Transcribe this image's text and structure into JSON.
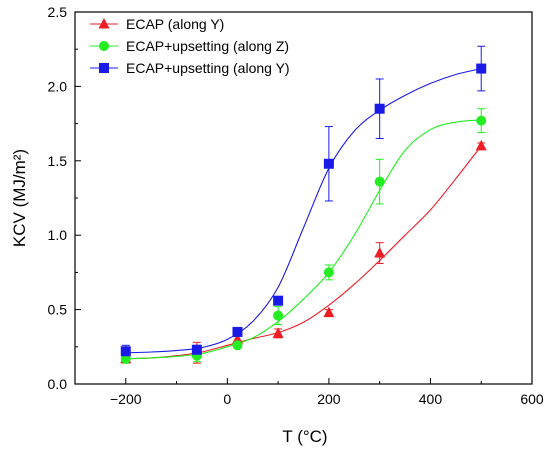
{
  "chart_data": {
    "type": "line",
    "xlabel": "T (°C)",
    "ylabel": "KCV (MJ/m²)",
    "xlim": [
      -300,
      600
    ],
    "ylim": [
      0.0,
      2.5
    ],
    "x_ticks": [
      "-200",
      "0",
      "200",
      "400",
      "600"
    ],
    "y_ticks": [
      "0.0",
      "0.5",
      "1.0",
      "1.5",
      "2.0",
      "2.5"
    ],
    "grid": false,
    "legend_position": "top-left",
    "series": [
      {
        "name": "ECAP (along Y)",
        "color": "#ee1c25",
        "marker": "triangle",
        "points": [
          {
            "x": -200,
            "y": 0.17,
            "err": 0.02
          },
          {
            "x": -60,
            "y": 0.21,
            "err": 0.07
          },
          {
            "x": 20,
            "y": 0.3,
            "err": 0.02
          },
          {
            "x": 100,
            "y": 0.34,
            "err": 0.03
          },
          {
            "x": 200,
            "y": 0.48,
            "err": 0.02
          },
          {
            "x": 300,
            "y": 0.88,
            "err": 0.07
          },
          {
            "x": 500,
            "y": 1.6,
            "err": 0.02
          }
        ],
        "curve": [
          [
            -200,
            0.17
          ],
          [
            -150,
            0.175
          ],
          [
            -100,
            0.19
          ],
          [
            -50,
            0.215
          ],
          [
            0,
            0.26
          ],
          [
            50,
            0.305
          ],
          [
            100,
            0.345
          ],
          [
            150,
            0.415
          ],
          [
            200,
            0.53
          ],
          [
            250,
            0.67
          ],
          [
            300,
            0.83
          ],
          [
            350,
            1.0
          ],
          [
            400,
            1.17
          ],
          [
            450,
            1.38
          ],
          [
            500,
            1.6
          ]
        ]
      },
      {
        "name": "ECAP+upsetting (along Z)",
        "color": "#22ee22",
        "marker": "circle",
        "points": [
          {
            "x": -200,
            "y": 0.17,
            "err": 0.03
          },
          {
            "x": -60,
            "y": 0.19,
            "err": 0.04
          },
          {
            "x": 20,
            "y": 0.26,
            "err": 0.02
          },
          {
            "x": 100,
            "y": 0.46,
            "err": 0.06
          },
          {
            "x": 200,
            "y": 0.75,
            "err": 0.05
          },
          {
            "x": 300,
            "y": 1.36,
            "err": 0.15
          },
          {
            "x": 500,
            "y": 1.77,
            "err": 0.08
          }
        ],
        "curve": [
          [
            -200,
            0.17
          ],
          [
            -150,
            0.175
          ],
          [
            -100,
            0.185
          ],
          [
            -50,
            0.205
          ],
          [
            0,
            0.25
          ],
          [
            50,
            0.31
          ],
          [
            100,
            0.42
          ],
          [
            150,
            0.57
          ],
          [
            200,
            0.75
          ],
          [
            250,
            1.0
          ],
          [
            300,
            1.3
          ],
          [
            350,
            1.57
          ],
          [
            400,
            1.71
          ],
          [
            450,
            1.76
          ],
          [
            500,
            1.775
          ]
        ]
      },
      {
        "name": "ECAP+upsetting (along Y)",
        "color": "#1a1ae6",
        "marker": "square",
        "points": [
          {
            "x": -200,
            "y": 0.22,
            "err": 0.04
          },
          {
            "x": -60,
            "y": 0.23,
            "err": 0.03
          },
          {
            "x": 20,
            "y": 0.35,
            "err": 0.02
          },
          {
            "x": 100,
            "y": 0.56,
            "err": 0.02
          },
          {
            "x": 200,
            "y": 1.48,
            "err": 0.25
          },
          {
            "x": 300,
            "y": 1.85,
            "err": 0.2
          },
          {
            "x": 500,
            "y": 2.12,
            "err": 0.15
          }
        ],
        "curve": [
          [
            -200,
            0.21
          ],
          [
            -150,
            0.215
          ],
          [
            -100,
            0.225
          ],
          [
            -50,
            0.245
          ],
          [
            0,
            0.3
          ],
          [
            50,
            0.42
          ],
          [
            100,
            0.65
          ],
          [
            150,
            1.05
          ],
          [
            200,
            1.45
          ],
          [
            250,
            1.7
          ],
          [
            300,
            1.84
          ],
          [
            350,
            1.94
          ],
          [
            400,
            2.02
          ],
          [
            450,
            2.08
          ],
          [
            500,
            2.12
          ]
        ]
      }
    ]
  }
}
